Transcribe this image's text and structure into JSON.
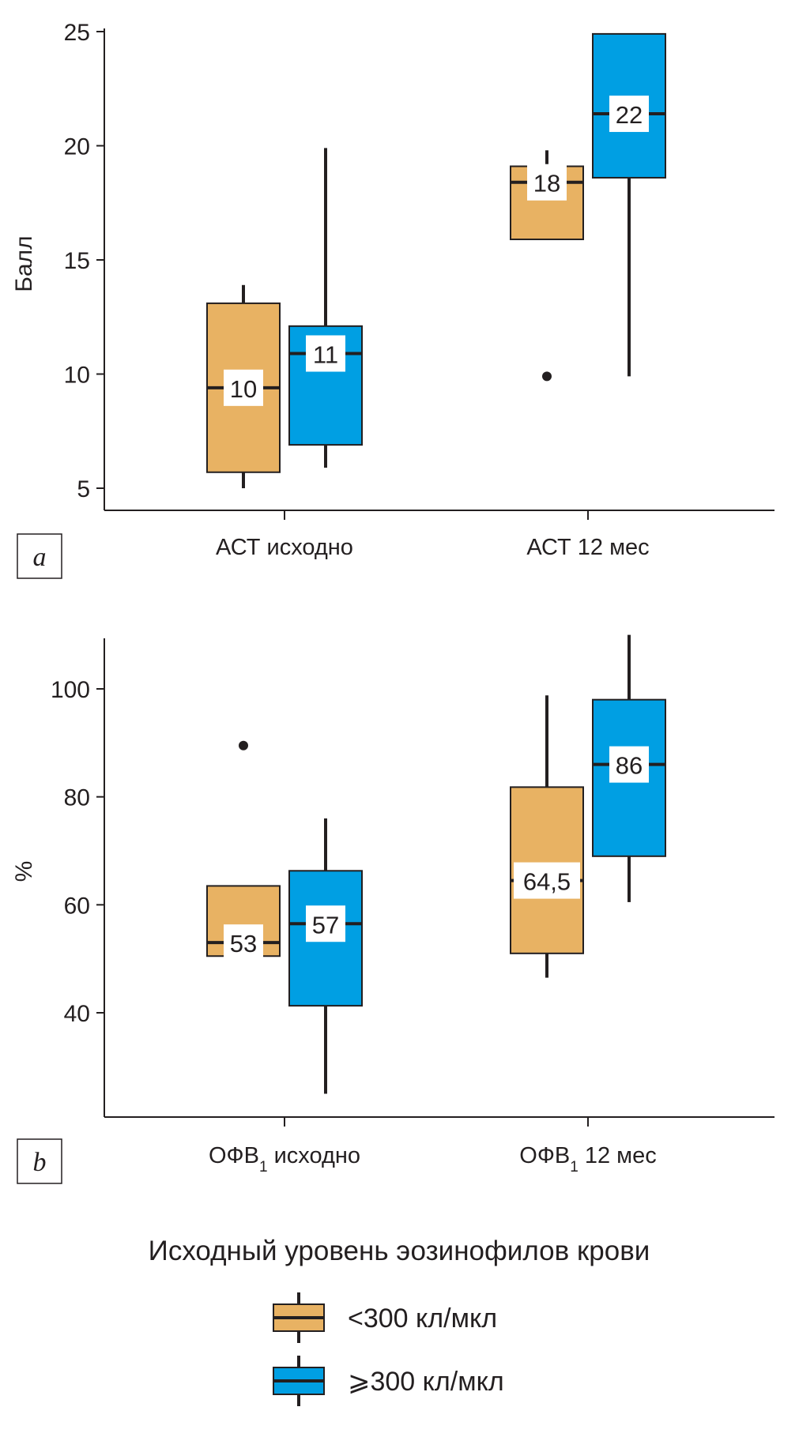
{
  "colors": {
    "low": "#e8b263",
    "high": "#009fe3",
    "line": "#231f20",
    "label_bg": "#ffffff"
  },
  "chart_data": [
    {
      "type": "box",
      "panel_label": "a",
      "ylabel": "Балл",
      "ylim": [
        4,
        26
      ],
      "yticks": [
        5,
        10,
        15,
        20,
        25
      ],
      "categories": [
        {
          "label": "АСТ исходно",
          "sub": "",
          "suffix": ""
        },
        {
          "label": "АСТ 12 мес",
          "sub": "",
          "suffix": ""
        }
      ],
      "series": [
        {
          "key": "low",
          "name": "<300 кл/мкл",
          "boxes": [
            {
              "whisker_low": 5,
              "q1": 5.7,
              "median": 9.4,
              "q3": 13.1,
              "whisker_high": 13.9,
              "median_label": "10",
              "outliers": []
            },
            {
              "whisker_low": 15.9,
              "q1": 15.9,
              "median": 18.4,
              "q3": 19.1,
              "whisker_high": 19.8,
              "median_label": "18",
              "outliers": [
                9.9
              ]
            }
          ]
        },
        {
          "key": "high",
          "name": "≥300 кл/мкл",
          "boxes": [
            {
              "whisker_low": 5.9,
              "q1": 6.9,
              "median": 10.9,
              "q3": 12.1,
              "whisker_high": 19.9,
              "median_label": "11",
              "outliers": []
            },
            {
              "whisker_low": 9.9,
              "q1": 18.6,
              "median": 21.4,
              "q3": 24.9,
              "whisker_high": 24.9,
              "median_label": "22",
              "outliers": []
            }
          ]
        }
      ]
    },
    {
      "type": "box",
      "panel_label": "b",
      "ylabel": "%",
      "ylim": [
        20,
        110
      ],
      "yticks": [
        40,
        60,
        80,
        100
      ],
      "categories": [
        {
          "label": "ОФВ",
          "sub": "1",
          "suffix": " исходно"
        },
        {
          "label": "ОФВ",
          "sub": "1",
          "suffix": " 12 мес"
        }
      ],
      "series": [
        {
          "key": "low",
          "name": "<300 кл/мкл",
          "boxes": [
            {
              "whisker_low": 50.5,
              "q1": 50.5,
              "median": 53,
              "q3": 63.5,
              "whisker_high": 63.5,
              "median_label": "53",
              "outliers": [
                89.5
              ]
            },
            {
              "whisker_low": 46.5,
              "q1": 51,
              "median": 64.5,
              "q3": 81.8,
              "whisker_high": 98.8,
              "median_label": "64,5",
              "outliers": []
            }
          ]
        },
        {
          "key": "high",
          "name": "≥300 кл/мкл",
          "boxes": [
            {
              "whisker_low": 25,
              "q1": 41.3,
              "median": 56.5,
              "q3": 66.3,
              "whisker_high": 76,
              "median_label": "57",
              "outliers": []
            },
            {
              "whisker_low": 60.5,
              "q1": 69,
              "median": 86,
              "q3": 98,
              "whisker_high": 110,
              "median_label": "86",
              "outliers": []
            }
          ]
        }
      ]
    }
  ],
  "legend": {
    "title": "Исходный уровень эозинофилов крови",
    "items": [
      {
        "key": "low",
        "label": "<300 кл/мкл"
      },
      {
        "key": "high",
        "label": "⩾300 кл/мкл"
      }
    ]
  }
}
